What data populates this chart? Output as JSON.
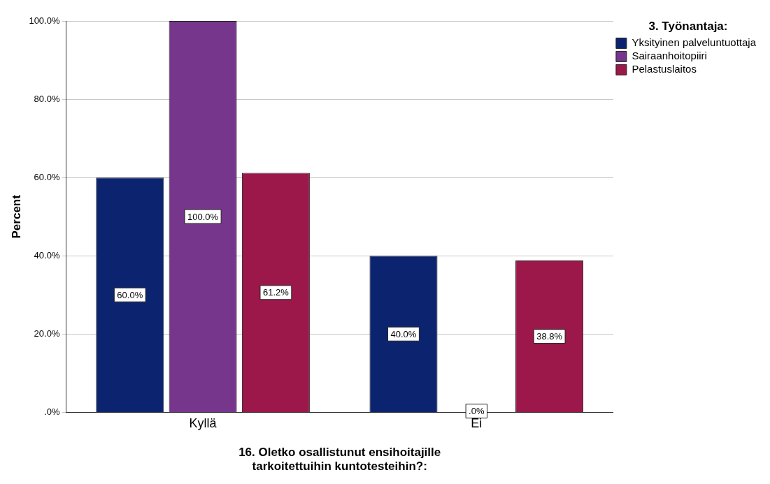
{
  "chart_data": {
    "type": "bar",
    "xlabel": "16. Oletko osallistunut ensihoitajille tarkoitettuihin kuntotesteihin?:",
    "ylabel": "Percent",
    "legend_title": "3. Työnantaja:",
    "categories": [
      "Kyllä",
      "Ei"
    ],
    "series": [
      {
        "name": "Yksityinen palveluntuottaja",
        "color": "#0c2470",
        "values": [
          60.0,
          40.0
        ],
        "value_labels": [
          "60.0%",
          "40.0%"
        ]
      },
      {
        "name": "Sairaanhoitopiiri",
        "color": "#76368c",
        "values": [
          100.0,
          0.0
        ],
        "value_labels": [
          "100.0%",
          ".0%"
        ]
      },
      {
        "name": "Pelastuslaitos",
        "color": "#9c174a",
        "values": [
          61.2,
          38.8
        ],
        "value_labels": [
          "61.2%",
          "38.8%"
        ]
      }
    ],
    "ylim": [
      0,
      100
    ],
    "yticks": [
      {
        "value": 0,
        "label": ".0%"
      },
      {
        "value": 20,
        "label": "20.0%"
      },
      {
        "value": 40,
        "label": "40.0%"
      },
      {
        "value": 60,
        "label": "60.0%"
      },
      {
        "value": 80,
        "label": "80.0%"
      },
      {
        "value": 100,
        "label": "100.0%"
      }
    ],
    "grid": "y",
    "legend": "top right"
  }
}
